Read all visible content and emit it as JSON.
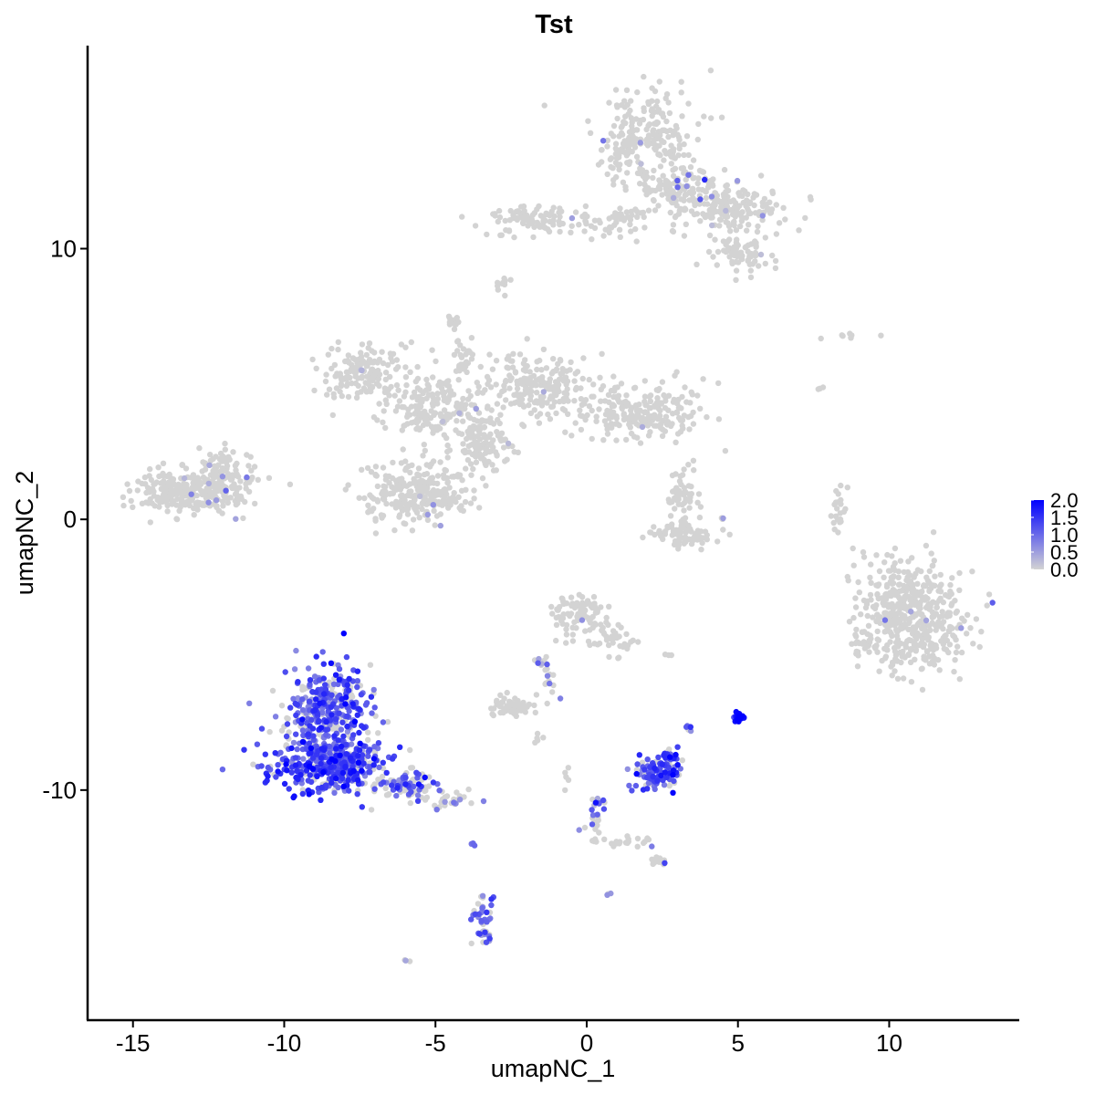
{
  "chart_data": {
    "type": "scatter",
    "title": "Tst",
    "xlabel": "umapNC_1",
    "ylabel": "umapNC_2",
    "xlim": [
      -16.5,
      14.3
    ],
    "ylim": [
      -18.5,
      17.5
    ],
    "x_ticks": [
      -15,
      -10,
      -5,
      0,
      5,
      10
    ],
    "x_tick_labels": [
      "-15",
      "-10",
      "-5",
      "0",
      "5",
      "10"
    ],
    "y_ticks": [
      -10,
      0,
      10
    ],
    "y_tick_labels": [
      "-10",
      "0",
      "10"
    ],
    "grid": false,
    "legend": {
      "position": "right",
      "type": "colorbar",
      "min": 0.0,
      "max": 2.0,
      "labels": [
        "2.0",
        "1.5",
        "1.0",
        "0.5",
        "0.0"
      ],
      "low_color": "#d3d3d3",
      "high_color": "#0000ff"
    },
    "clusters": [
      {
        "cx": 1.9,
        "cy": 14.0,
        "rx": 1.5,
        "ry": 1.6,
        "n": 260,
        "expr": 0.01,
        "expr_level": 0.6
      },
      {
        "cx": 3.4,
        "cy": 12.0,
        "rx": 1.4,
        "ry": 0.9,
        "n": 130,
        "expr": 0.02,
        "expr_level": 0.6
      },
      {
        "cx": 4.8,
        "cy": 11.5,
        "rx": 1.5,
        "ry": 0.8,
        "n": 130,
        "expr": 0.02,
        "expr_level": 0.6
      },
      {
        "cx": 5.0,
        "cy": 9.8,
        "rx": 1.0,
        "ry": 0.6,
        "n": 70,
        "expr": 0.02,
        "expr_level": 0.6
      },
      {
        "cx": -1.8,
        "cy": 11.1,
        "rx": 1.3,
        "ry": 0.5,
        "n": 90,
        "expr": 0.02,
        "expr_level": 0.5
      },
      {
        "cx": 0.8,
        "cy": 11.0,
        "rx": 1.0,
        "ry": 0.5,
        "n": 45,
        "expr": 0.02,
        "expr_level": 0.5
      },
      {
        "cx": -2.8,
        "cy": 8.8,
        "rx": 0.25,
        "ry": 0.3,
        "n": 10,
        "expr": 0.0,
        "expr_level": 0.0
      },
      {
        "cx": -4.4,
        "cy": 7.3,
        "rx": 0.25,
        "ry": 0.3,
        "n": 14,
        "expr": 0.0,
        "expr_level": 0.0
      },
      {
        "cx": -7.2,
        "cy": 5.4,
        "rx": 1.3,
        "ry": 0.9,
        "n": 150,
        "expr": 0.01,
        "expr_level": 0.5
      },
      {
        "cx": -5.1,
        "cy": 4.1,
        "rx": 1.5,
        "ry": 1.0,
        "n": 180,
        "expr": 0.01,
        "expr_level": 0.5
      },
      {
        "cx": -1.6,
        "cy": 4.9,
        "rx": 1.6,
        "ry": 1.2,
        "n": 200,
        "expr": 0.01,
        "expr_level": 0.5
      },
      {
        "cx": 1.8,
        "cy": 4.0,
        "rx": 2.0,
        "ry": 0.9,
        "n": 220,
        "expr": 0.01,
        "expr_level": 0.5
      },
      {
        "cx": -3.5,
        "cy": 2.9,
        "rx": 0.9,
        "ry": 0.9,
        "n": 120,
        "expr": 0.01,
        "expr_level": 0.5
      },
      {
        "cx": -5.6,
        "cy": 1.0,
        "rx": 1.7,
        "ry": 1.0,
        "n": 280,
        "expr": 0.01,
        "expr_level": 0.5
      },
      {
        "cx": -4.1,
        "cy": 5.8,
        "rx": 0.3,
        "ry": 0.9,
        "n": 28,
        "expr": 0.0,
        "expr_level": 0.0
      },
      {
        "cx": -13.8,
        "cy": 1.0,
        "rx": 1.1,
        "ry": 0.7,
        "n": 130,
        "expr": 0.03,
        "expr_level": 0.6
      },
      {
        "cx": -12.3,
        "cy": 1.2,
        "rx": 1.3,
        "ry": 0.8,
        "n": 200,
        "expr": 0.03,
        "expr_level": 0.6
      },
      {
        "cx": -12.0,
        "cy": 2.1,
        "rx": 0.5,
        "ry": 0.4,
        "n": 30,
        "expr": 0.0,
        "expr_level": 0.0
      },
      {
        "cx": 3.2,
        "cy": 0.9,
        "rx": 0.5,
        "ry": 0.9,
        "n": 50,
        "expr": 0.0,
        "expr_level": 0.0
      },
      {
        "cx": 3.2,
        "cy": -0.6,
        "rx": 1.0,
        "ry": 0.4,
        "n": 80,
        "expr": 0.01,
        "expr_level": 0.6
      },
      {
        "cx": 8.3,
        "cy": 0.4,
        "rx": 0.25,
        "ry": 0.9,
        "n": 22,
        "expr": 0.0,
        "expr_level": 0.0
      },
      {
        "cx": 10.7,
        "cy": -3.6,
        "rx": 1.6,
        "ry": 1.9,
        "n": 500,
        "expr": 0.01,
        "expr_level": 0.6
      },
      {
        "cx": 9.2,
        "cy": -4.6,
        "rx": 0.5,
        "ry": 0.5,
        "n": 30,
        "expr": 0.0,
        "expr_level": 0.0
      },
      {
        "cx": -0.3,
        "cy": -3.5,
        "rx": 0.8,
        "ry": 0.7,
        "n": 90,
        "expr": 0.04,
        "expr_level": 0.8
      },
      {
        "cx": 0.9,
        "cy": -4.4,
        "rx": 0.6,
        "ry": 0.6,
        "n": 35,
        "expr": 0.02,
        "expr_level": 0.8
      },
      {
        "cx": -1.3,
        "cy": -5.8,
        "rx": 0.35,
        "ry": 0.8,
        "n": 22,
        "expr": 0.2,
        "expr_level": 0.9
      },
      {
        "cx": -2.5,
        "cy": -6.9,
        "rx": 0.6,
        "ry": 0.3,
        "n": 60,
        "expr": 0.0,
        "expr_level": 0.0
      },
      {
        "cx": -8.6,
        "cy": -7.2,
        "rx": 1.3,
        "ry": 1.5,
        "n": 380,
        "expr": 0.75,
        "expr_level": 1.2
      },
      {
        "cx": -8.5,
        "cy": -9.1,
        "rx": 1.8,
        "ry": 0.8,
        "n": 380,
        "expr": 0.75,
        "expr_level": 1.3
      },
      {
        "cx": -6.0,
        "cy": -9.8,
        "rx": 1.1,
        "ry": 0.5,
        "n": 90,
        "expr": 0.45,
        "expr_level": 1.0
      },
      {
        "cx": -4.6,
        "cy": -10.4,
        "rx": 0.8,
        "ry": 0.3,
        "n": 35,
        "expr": 0.15,
        "expr_level": 0.9
      },
      {
        "cx": 2.3,
        "cy": -9.4,
        "rx": 0.6,
        "ry": 0.5,
        "n": 100,
        "expr": 0.85,
        "expr_level": 1.3
      },
      {
        "cx": 2.8,
        "cy": -8.7,
        "rx": 0.3,
        "ry": 0.3,
        "n": 22,
        "expr": 0.85,
        "expr_level": 1.4
      },
      {
        "cx": 3.4,
        "cy": -7.7,
        "rx": 0.1,
        "ry": 0.1,
        "n": 6,
        "expr": 0.6,
        "expr_level": 1.1
      },
      {
        "cx": 5.0,
        "cy": -7.3,
        "rx": 0.15,
        "ry": 0.15,
        "n": 28,
        "expr": 1.0,
        "expr_level": 1.9
      },
      {
        "cx": 0.3,
        "cy": -11.0,
        "rx": 0.3,
        "ry": 0.9,
        "n": 25,
        "expr": 0.6,
        "expr_level": 1.0
      },
      {
        "cx": 1.4,
        "cy": -11.9,
        "rx": 0.9,
        "ry": 0.2,
        "n": 22,
        "expr": 0.1,
        "expr_level": 0.8
      },
      {
        "cx": 2.4,
        "cy": -12.6,
        "rx": 0.3,
        "ry": 0.2,
        "n": 14,
        "expr": 0.2,
        "expr_level": 1.0
      },
      {
        "cx": -3.4,
        "cy": -14.6,
        "rx": 0.3,
        "ry": 0.9,
        "n": 45,
        "expr": 0.7,
        "expr_level": 1.0
      },
      {
        "cx": -3.8,
        "cy": -12.0,
        "rx": 0.1,
        "ry": 0.1,
        "n": 4,
        "expr": 1.0,
        "expr_level": 0.9
      },
      {
        "cx": -6.0,
        "cy": -16.3,
        "rx": 0.1,
        "ry": 0.1,
        "n": 3,
        "expr": 0.6,
        "expr_level": 0.6
      },
      {
        "cx": 0.7,
        "cy": -13.8,
        "rx": 0.1,
        "ry": 0.1,
        "n": 3,
        "expr": 0.6,
        "expr_level": 0.8
      },
      {
        "cx": 8.5,
        "cy": 6.8,
        "rx": 0.8,
        "ry": 0.2,
        "n": 8,
        "expr": 0.0,
        "expr_level": 0.0
      },
      {
        "cx": 7.7,
        "cy": 4.9,
        "rx": 0.1,
        "ry": 0.2,
        "n": 3,
        "expr": 0.0,
        "expr_level": 0.0
      },
      {
        "cx": 4.5,
        "cy": 0.1,
        "rx": 0.1,
        "ry": 0.1,
        "n": 3,
        "expr": 0.6,
        "expr_level": 0.6
      },
      {
        "cx": -1.6,
        "cy": -8.2,
        "rx": 0.2,
        "ry": 0.2,
        "n": 5,
        "expr": 0.0,
        "expr_level": 0.0
      },
      {
        "cx": -0.7,
        "cy": -9.5,
        "rx": 0.1,
        "ry": 0.4,
        "n": 5,
        "expr": 0.0,
        "expr_level": 0.0
      },
      {
        "cx": 2.7,
        "cy": -5.0,
        "rx": 0.2,
        "ry": 0.05,
        "n": 3,
        "expr": 0.0,
        "expr_level": 0.0
      }
    ]
  }
}
